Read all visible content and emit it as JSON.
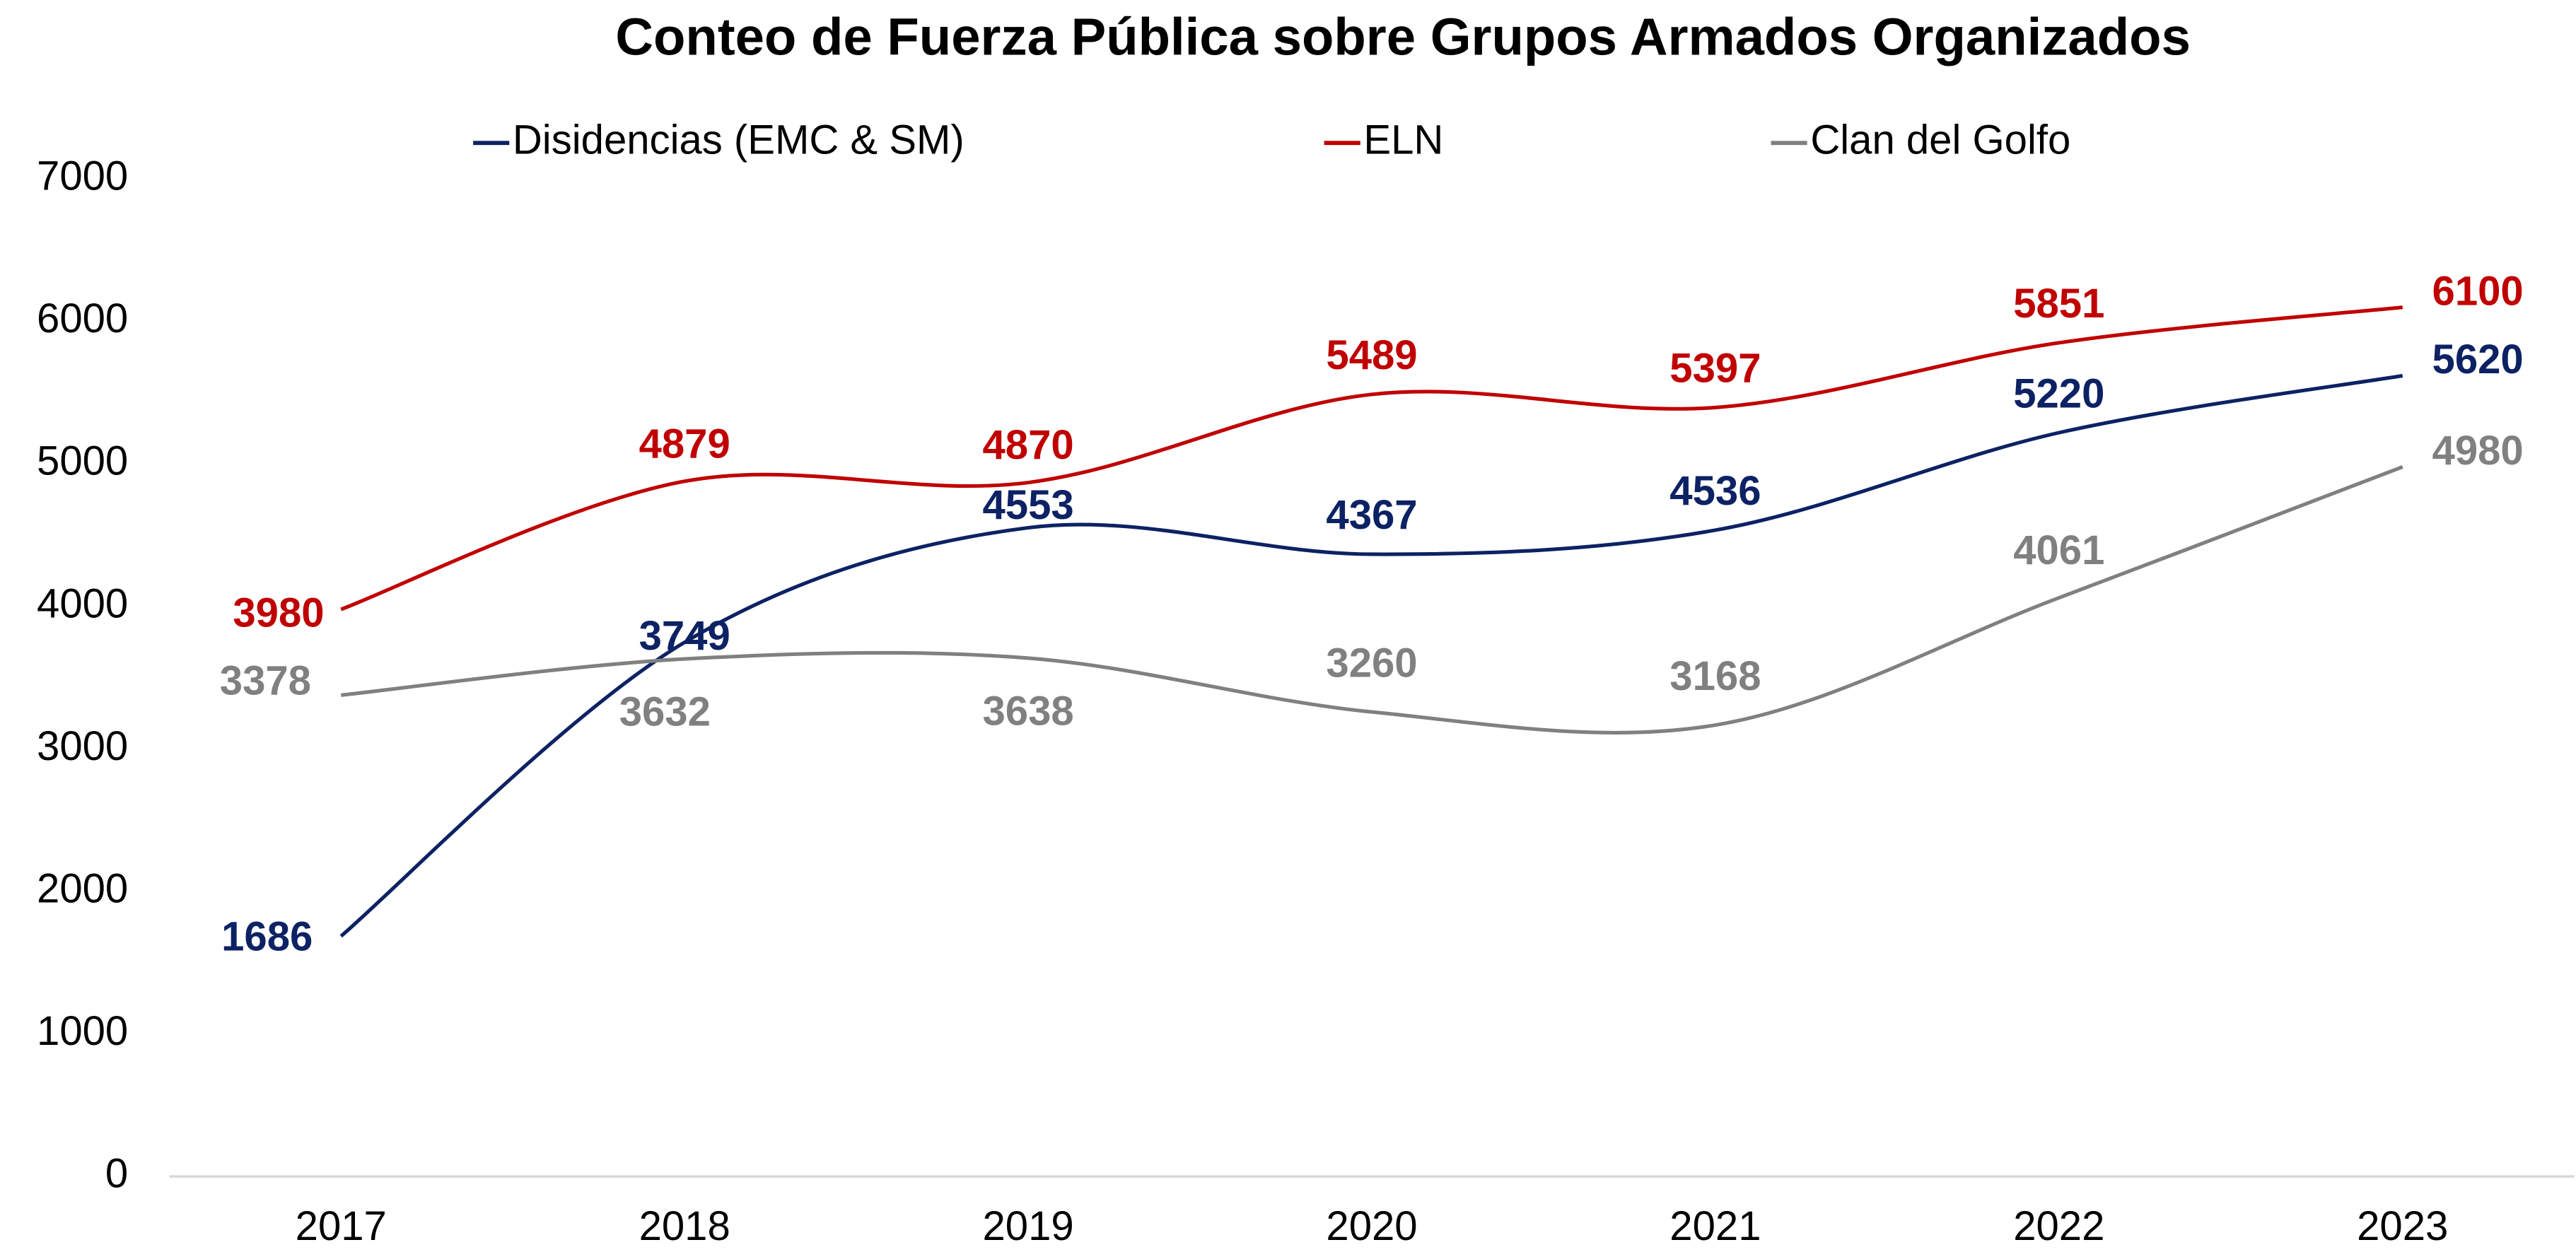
{
  "chart_data": {
    "type": "line",
    "title": "Conteo de Fuerza Pública sobre Grupos Armados Organizados",
    "categories": [
      "2017",
      "2018",
      "2019",
      "2020",
      "2021",
      "2022",
      "2023"
    ],
    "series": [
      {
        "name": "Disidencias (EMC & SM)",
        "color": "#0d2264",
        "values": [
          1686,
          3749,
          4553,
          4367,
          4536,
          5220,
          5620
        ]
      },
      {
        "name": "ELN",
        "color": "#c00000",
        "values": [
          3980,
          4879,
          4870,
          5489,
          5397,
          5851,
          6100
        ]
      },
      {
        "name": "Clan del Golfo",
        "color": "#808080",
        "values": [
          3378,
          3632,
          3638,
          3260,
          3168,
          4061,
          4980
        ]
      }
    ],
    "ylim": [
      0,
      7000
    ],
    "yticks": [
      0,
      1000,
      2000,
      3000,
      4000,
      5000,
      6000,
      7000
    ],
    "grid": false,
    "legend": "top"
  }
}
